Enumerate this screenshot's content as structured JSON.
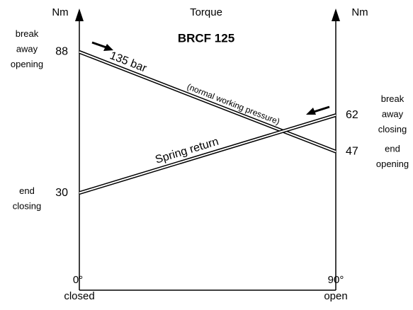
{
  "chart_data": {
    "type": "line",
    "title": "Torque",
    "subtitle": "BRCF 125",
    "y_label": "Nm",
    "y2_label": "Nm",
    "categories": [
      "0°",
      "90°"
    ],
    "category_notes": [
      "closed",
      "open"
    ],
    "series": [
      {
        "name": "135 bar",
        "note": "(normal working pressure)",
        "color": "#000000",
        "values": [
          88,
          47
        ]
      },
      {
        "name": "Spring return",
        "color": "#000000",
        "values": [
          30,
          62
        ]
      }
    ],
    "annotations": [
      [
        "break",
        "away",
        "opening"
      ],
      [
        "end",
        "closing"
      ],
      [
        "break",
        "away",
        "closing"
      ],
      [
        "end",
        "opening"
      ]
    ],
    "ylim": [
      -10,
      105
    ]
  }
}
